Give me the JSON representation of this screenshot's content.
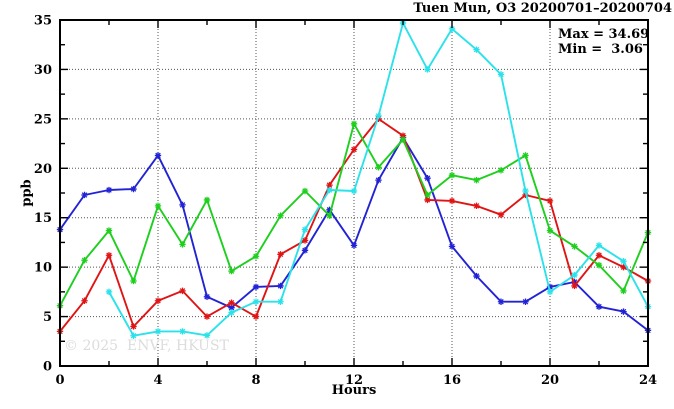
{
  "figure": {
    "title": "Tuen Mun, O3 20200701–20200704",
    "stats": {
      "max_label": "Max = 34.69",
      "min_label": "Min =  3.06"
    },
    "ylabel": "ppb",
    "xlabel": "Hours",
    "watermark": "© 2025  ENVF, HKUST"
  },
  "chart_data": {
    "type": "line",
    "title": "Tuen Mun, O3 20200701–20200704",
    "xlabel": "Hours",
    "ylabel": "ppb",
    "xlim": [
      0,
      24
    ],
    "ylim": [
      0,
      35
    ],
    "x_major_ticks": [
      0,
      4,
      8,
      12,
      16,
      20,
      24
    ],
    "x_minor_step": 2,
    "y_major_ticks": [
      0,
      5,
      10,
      15,
      20,
      25,
      30,
      35
    ],
    "y_minor_step": 2.5,
    "grid": "dotted gray lines at interior major ticks, both axes",
    "legend": "none",
    "annotations": [
      "Max = 34.69",
      "Min =  3.06"
    ],
    "max": 34.69,
    "min": 3.06,
    "marker": "asterisk",
    "series": [
      {
        "name": "series-blue",
        "color": "#2323d6",
        "x": [
          0,
          1,
          2,
          3,
          4,
          5,
          6,
          7,
          8,
          9,
          10,
          11,
          12,
          13,
          14,
          15,
          16,
          17,
          18,
          19,
          20,
          21,
          22,
          23,
          24
        ],
        "values": [
          13.8,
          17.3,
          17.8,
          17.9,
          21.3,
          16.3,
          7.0,
          5.9,
          8.0,
          8.1,
          11.7,
          15.8,
          12.2,
          18.8,
          23.1,
          19.0,
          12.1,
          9.1,
          6.5,
          6.5,
          8.0,
          8.5,
          6.0,
          5.5,
          3.6
        ]
      },
      {
        "name": "series-red",
        "color": "#e01414",
        "x": [
          0,
          1,
          2,
          3,
          4,
          5,
          6,
          7,
          8,
          9,
          10,
          11,
          12,
          13,
          14,
          15,
          16,
          17,
          18,
          19,
          20,
          21,
          22,
          23,
          24
        ],
        "values": [
          3.5,
          6.6,
          11.2,
          4.0,
          6.6,
          7.6,
          5.0,
          6.4,
          5.0,
          11.3,
          12.7,
          18.3,
          21.9,
          25.0,
          23.3,
          16.8,
          16.7,
          16.2,
          15.3,
          17.3,
          16.7,
          8.1,
          11.2,
          10.0,
          8.6
        ]
      },
      {
        "name": "series-green",
        "color": "#1ecf1e",
        "x": [
          0,
          1,
          2,
          3,
          4,
          5,
          6,
          7,
          8,
          9,
          10,
          11,
          12,
          13,
          14,
          15,
          16,
          17,
          18,
          19,
          20,
          21,
          22,
          23,
          24
        ],
        "values": [
          6.1,
          10.7,
          13.7,
          8.6,
          16.2,
          12.3,
          16.8,
          9.6,
          11.1,
          15.2,
          17.7,
          15.2,
          24.5,
          20.1,
          22.9,
          17.3,
          19.3,
          18.8,
          19.8,
          21.3,
          13.7,
          12.1,
          10.2,
          7.6,
          13.5
        ]
      },
      {
        "name": "series-cyan",
        "color": "#2ce2ea",
        "x": [
          2,
          3,
          4,
          5,
          6,
          7,
          8,
          9,
          10,
          11,
          12,
          13,
          14,
          15,
          16,
          17,
          18,
          19,
          20,
          21,
          22,
          23,
          24
        ],
        "values": [
          7.5,
          3.06,
          3.5,
          3.5,
          3.1,
          5.4,
          6.5,
          6.5,
          13.8,
          17.8,
          17.7,
          25.3,
          34.69,
          30.0,
          34.1,
          32.0,
          29.5,
          17.7,
          7.5,
          9.2,
          12.2,
          10.6,
          6.0
        ]
      }
    ]
  }
}
